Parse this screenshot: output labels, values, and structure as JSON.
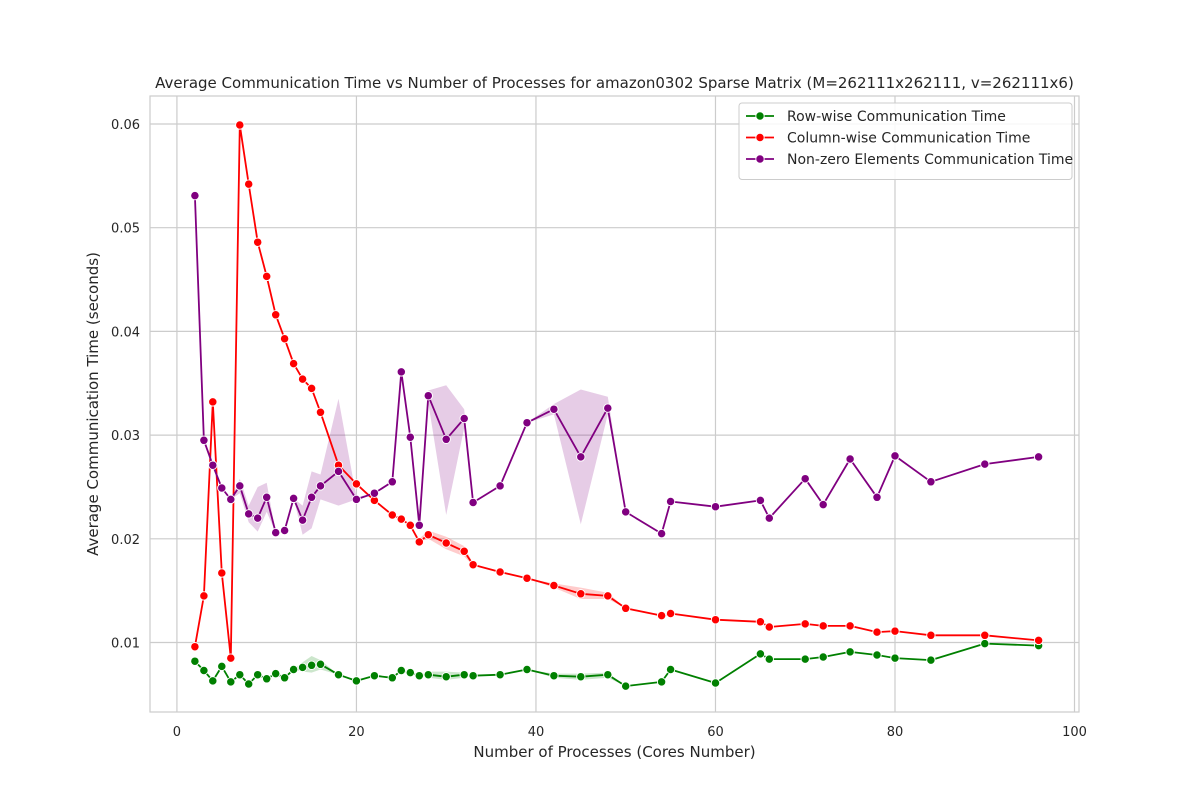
{
  "chart_data": {
    "type": "line",
    "title": "Average Communication Time vs Number of Processes for amazon0302 Sparse Matrix (M=262111x262111, v=262111x6)",
    "xlabel": "Number of Processes (Cores Number)",
    "ylabel": "Average Communication Time (seconds)",
    "xlim": [
      -3,
      100.5
    ],
    "ylim": [
      0.0033,
      0.0627
    ],
    "xticks": [
      0,
      20,
      40,
      60,
      80,
      100
    ],
    "xtick_labels": [
      "0",
      "20",
      "40",
      "60",
      "80",
      "100"
    ],
    "yticks": [
      0.01,
      0.02,
      0.03,
      0.04,
      0.05,
      0.06
    ],
    "ytick_labels": [
      "0.01",
      "0.02",
      "0.03",
      "0.04",
      "0.05",
      "0.06"
    ],
    "grid": true,
    "legend_position": "top-right",
    "series": [
      {
        "name": "Row-wise Communication Time",
        "color": "#008000",
        "points": [
          [
            2,
            0.0082
          ],
          [
            3,
            0.0073
          ],
          [
            4,
            0.0063
          ],
          [
            5,
            0.0077
          ],
          [
            6,
            0.0062
          ],
          [
            7,
            0.0069
          ],
          [
            8,
            0.006
          ],
          [
            9,
            0.0069
          ],
          [
            10,
            0.0065
          ],
          [
            11,
            0.007
          ],
          [
            12,
            0.0066
          ],
          [
            13,
            0.0074
          ],
          [
            14,
            0.0076
          ],
          [
            15,
            0.0078
          ],
          [
            16,
            0.0079
          ],
          [
            18,
            0.0069
          ],
          [
            20,
            0.0063
          ],
          [
            22,
            0.0068
          ],
          [
            24,
            0.0066
          ],
          [
            25,
            0.0073
          ],
          [
            26,
            0.0071
          ],
          [
            27,
            0.0068
          ],
          [
            28,
            0.0069
          ],
          [
            30,
            0.0067
          ],
          [
            32,
            0.0069
          ],
          [
            33,
            0.0068
          ],
          [
            36,
            0.0069
          ],
          [
            39,
            0.0074
          ],
          [
            42,
            0.0068
          ],
          [
            45,
            0.0067
          ],
          [
            48,
            0.0069
          ],
          [
            50,
            0.0058
          ],
          [
            54,
            0.0062
          ],
          [
            55,
            0.0074
          ],
          [
            60,
            0.0061
          ],
          [
            65,
            0.0089
          ],
          [
            66,
            0.0084
          ],
          [
            70,
            0.0084
          ],
          [
            72,
            0.0086
          ],
          [
            75,
            0.0091
          ],
          [
            78,
            0.0088
          ],
          [
            80,
            0.0085
          ],
          [
            84,
            0.0083
          ],
          [
            90,
            0.0099
          ],
          [
            96,
            0.0097
          ]
        ],
        "band": [
          [
            14,
            0.0072,
            0.0081
          ],
          [
            15,
            0.0071,
            0.0087
          ],
          [
            16,
            0.0074,
            0.0083
          ],
          [
            28,
            0.0066,
            0.0072
          ],
          [
            30,
            0.0064,
            0.0072
          ],
          [
            32,
            0.0066,
            0.0071
          ],
          [
            42,
            0.0066,
            0.007
          ],
          [
            45,
            0.0064,
            0.007
          ],
          [
            48,
            0.0066,
            0.0071
          ]
        ]
      },
      {
        "name": "Column-wise Communication Time",
        "color": "#ff0000",
        "points": [
          [
            2,
            0.0096
          ],
          [
            3,
            0.0145
          ],
          [
            4,
            0.0332
          ],
          [
            5,
            0.0167
          ],
          [
            6,
            0.0085
          ],
          [
            7,
            0.0599
          ],
          [
            8,
            0.0542
          ],
          [
            9,
            0.0486
          ],
          [
            10,
            0.0453
          ],
          [
            11,
            0.0416
          ],
          [
            12,
            0.0393
          ],
          [
            13,
            0.0369
          ],
          [
            14,
            0.0354
          ],
          [
            15,
            0.0345
          ],
          [
            16,
            0.0322
          ],
          [
            18,
            0.0271
          ],
          [
            20,
            0.0253
          ],
          [
            22,
            0.0237
          ],
          [
            24,
            0.0223
          ],
          [
            25,
            0.0219
          ],
          [
            26,
            0.0213
          ],
          [
            27,
            0.0197
          ],
          [
            28,
            0.0204
          ],
          [
            30,
            0.0196
          ],
          [
            32,
            0.0188
          ],
          [
            33,
            0.0175
          ],
          [
            36,
            0.0168
          ],
          [
            39,
            0.0162
          ],
          [
            42,
            0.0155
          ],
          [
            45,
            0.0147
          ],
          [
            48,
            0.0145
          ],
          [
            50,
            0.0133
          ],
          [
            54,
            0.0126
          ],
          [
            55,
            0.0128
          ],
          [
            60,
            0.0122
          ],
          [
            65,
            0.012
          ],
          [
            66,
            0.0115
          ],
          [
            70,
            0.0118
          ],
          [
            72,
            0.0116
          ],
          [
            75,
            0.0116
          ],
          [
            78,
            0.011
          ],
          [
            80,
            0.0111
          ],
          [
            84,
            0.0107
          ],
          [
            90,
            0.0107
          ],
          [
            96,
            0.0102
          ]
        ],
        "band": [
          [
            27,
            0.0197,
            0.02
          ],
          [
            28,
            0.02,
            0.0208
          ],
          [
            30,
            0.019,
            0.0202
          ],
          [
            32,
            0.0183,
            0.0193
          ],
          [
            33,
            0.0174,
            0.0176
          ],
          [
            42,
            0.0153,
            0.0157
          ],
          [
            45,
            0.0142,
            0.0153
          ],
          [
            48,
            0.0142,
            0.0148
          ]
        ]
      },
      {
        "name": "Non-zero Elements Communication Time",
        "color": "#800080",
        "points": [
          [
            2,
            0.0531
          ],
          [
            3,
            0.0295
          ],
          [
            4,
            0.0271
          ],
          [
            5,
            0.0249
          ],
          [
            6,
            0.0238
          ],
          [
            7,
            0.0251
          ],
          [
            8,
            0.0224
          ],
          [
            9,
            0.022
          ],
          [
            10,
            0.024
          ],
          [
            11,
            0.0206
          ],
          [
            12,
            0.0208
          ],
          [
            13,
            0.0239
          ],
          [
            14,
            0.0218
          ],
          [
            15,
            0.024
          ],
          [
            16,
            0.0251
          ],
          [
            18,
            0.0265
          ],
          [
            20,
            0.0238
          ],
          [
            22,
            0.0244
          ],
          [
            24,
            0.0255
          ],
          [
            25,
            0.0361
          ],
          [
            26,
            0.0298
          ],
          [
            27,
            0.0213
          ],
          [
            28,
            0.0338
          ],
          [
            30,
            0.0296
          ],
          [
            32,
            0.0316
          ],
          [
            33,
            0.0235
          ],
          [
            36,
            0.0251
          ],
          [
            39,
            0.0312
          ],
          [
            42,
            0.0325
          ],
          [
            45,
            0.0279
          ],
          [
            48,
            0.0326
          ],
          [
            50,
            0.0226
          ],
          [
            54,
            0.0205
          ],
          [
            55,
            0.0236
          ],
          [
            60,
            0.0231
          ],
          [
            65,
            0.0237
          ],
          [
            66,
            0.022
          ],
          [
            70,
            0.0258
          ],
          [
            72,
            0.0233
          ],
          [
            75,
            0.0277
          ],
          [
            78,
            0.024
          ],
          [
            80,
            0.028
          ],
          [
            84,
            0.0255
          ],
          [
            90,
            0.0272
          ],
          [
            96,
            0.0279
          ]
        ],
        "band": [
          [
            7,
            0.0244,
            0.0258
          ],
          [
            8,
            0.0216,
            0.0232
          ],
          [
            9,
            0.0207,
            0.025
          ],
          [
            10,
            0.0226,
            0.0254
          ],
          [
            14,
            0.0204,
            0.0232
          ],
          [
            15,
            0.021,
            0.0265
          ],
          [
            16,
            0.0238,
            0.0262
          ],
          [
            18,
            0.0232,
            0.0335
          ],
          [
            20,
            0.0238,
            0.024
          ],
          [
            26,
            0.0292,
            0.0304
          ],
          [
            27,
            0.0207,
            0.022
          ],
          [
            28,
            0.0331,
            0.0343
          ],
          [
            30,
            0.0223,
            0.0348
          ],
          [
            32,
            0.0307,
            0.0325
          ],
          [
            42,
            0.032,
            0.033
          ],
          [
            45,
            0.0214,
            0.0344
          ],
          [
            48,
            0.032,
            0.0337
          ]
        ]
      }
    ]
  }
}
